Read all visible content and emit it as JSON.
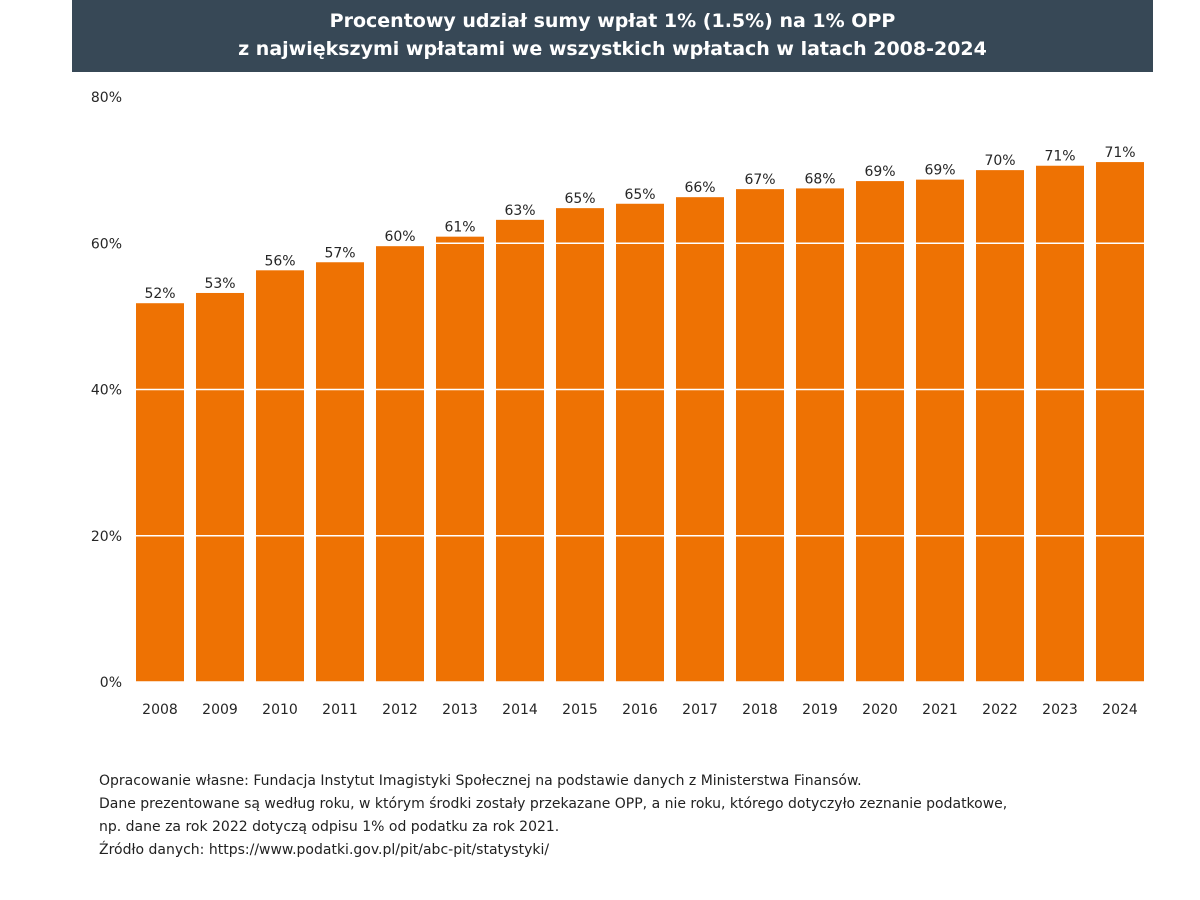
{
  "title": {
    "line1": "Procentowy udział sumy wpłat 1% (1.5%) na 1% OPP",
    "line2": "z największymi wpłatami we wszystkich wpłatach w latach 2008-2024"
  },
  "chart_data": {
    "type": "bar",
    "categories": [
      "2008",
      "2009",
      "2010",
      "2011",
      "2012",
      "2013",
      "2014",
      "2015",
      "2016",
      "2017",
      "2018",
      "2019",
      "2020",
      "2021",
      "2022",
      "2023",
      "2024"
    ],
    "values": [
      51.8,
      53.2,
      56.3,
      57.4,
      59.6,
      60.9,
      63.2,
      64.8,
      65.4,
      66.3,
      67.4,
      67.5,
      68.5,
      68.7,
      70.0,
      70.6,
      71.1
    ],
    "value_labels": [
      "52%",
      "53%",
      "56%",
      "57%",
      "60%",
      "61%",
      "63%",
      "65%",
      "65%",
      "66%",
      "67%",
      "68%",
      "69%",
      "69%",
      "70%",
      "71%",
      "71%"
    ],
    "yticks": [
      "0%",
      "20%",
      "40%",
      "60%",
      "80%"
    ],
    "ytick_values": [
      0,
      20,
      40,
      60,
      80
    ],
    "ylim": [
      0,
      80
    ],
    "grid": true,
    "colors": {
      "bar": "#EE7203",
      "grid": "#ffffff",
      "banner": "#374856"
    }
  },
  "notes": [
    "Opracowanie własne: Fundacja Instytut Imagistyki Społecznej na podstawie danych z Ministerstwa Finansów.",
    "Dane prezentowane są według roku, w którym środki zostały przekazane OPP, a nie roku, którego dotyczyło zeznanie podatkowe,",
    "np. dane za rok 2022 dotyczą odpisu 1% od podatku za rok 2021.",
    "Źródło danych: https://www.podatki.gov.pl/pit/abc-pit/statystyki/"
  ]
}
